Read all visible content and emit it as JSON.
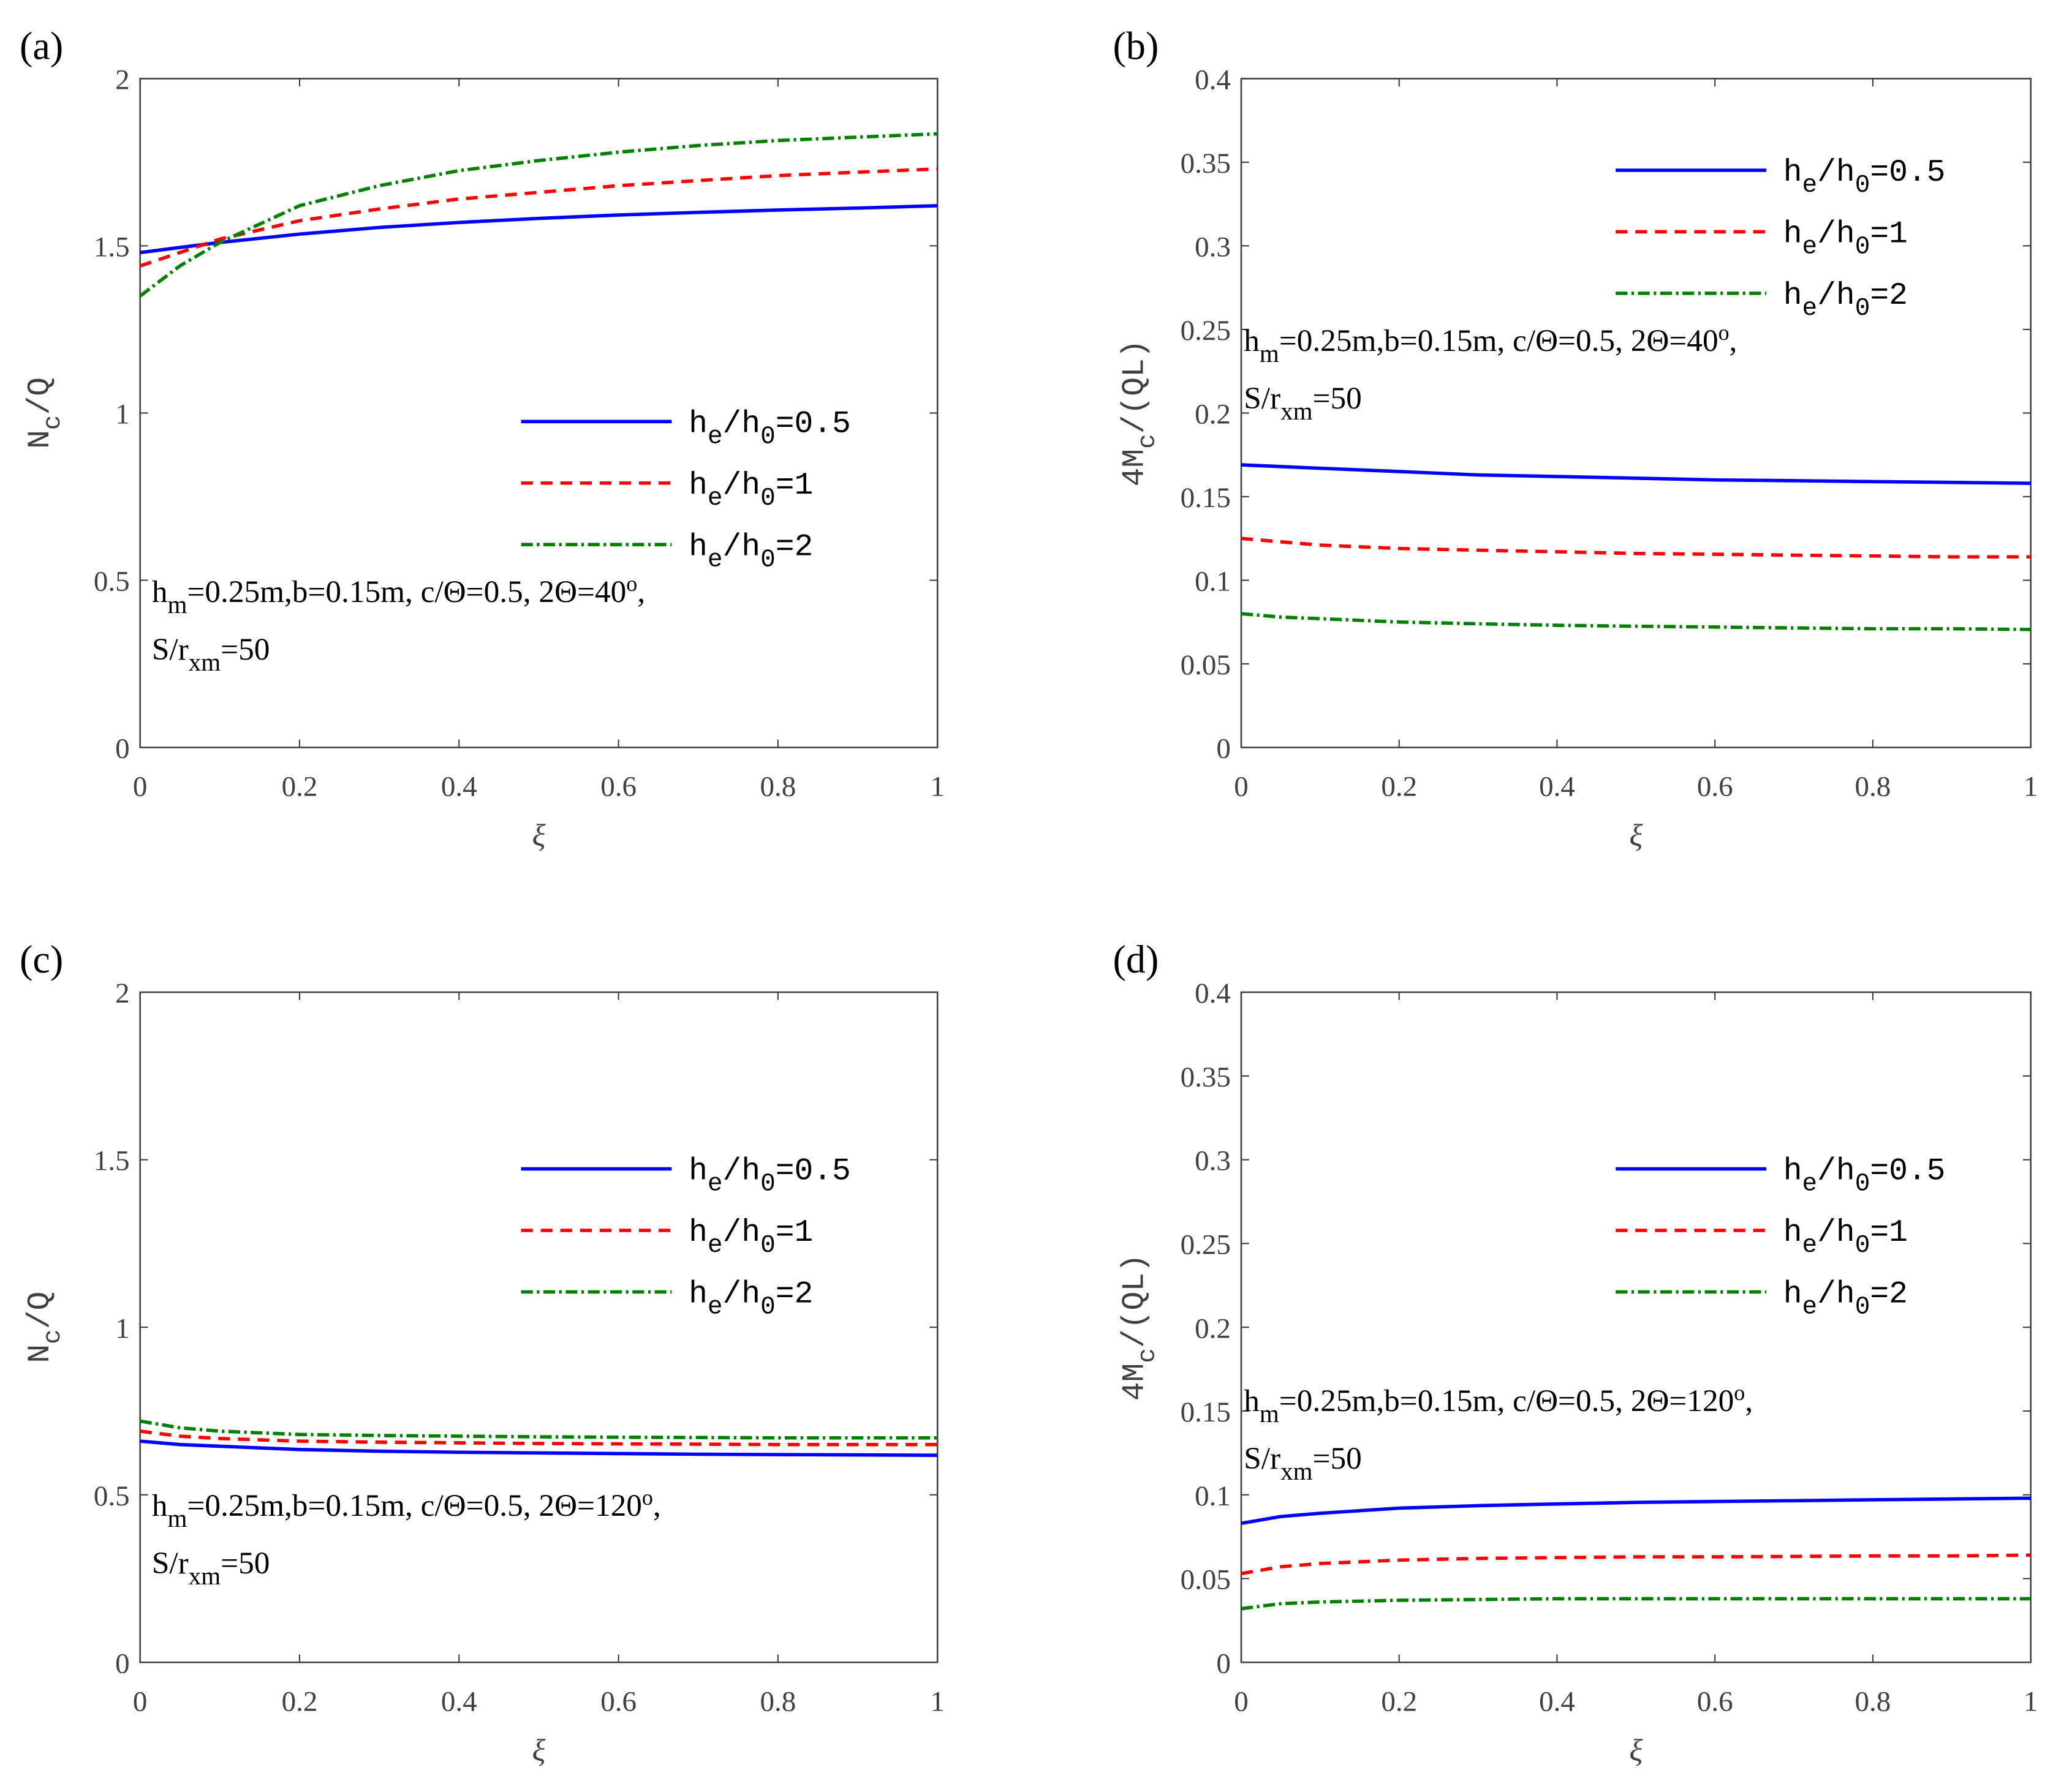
{
  "colors": {
    "blue": "#0000ff",
    "red": "#ff0000",
    "green": "#008000",
    "axis": "#404040"
  },
  "chart_data": [
    {
      "type": "line",
      "panel_label": "(a)",
      "xlabel": "ξ",
      "ylabel": [
        [
          "N",
          ""
        ],
        [
          "c",
          "sub"
        ],
        [
          "/Q",
          ""
        ]
      ],
      "xlim": [
        0,
        1
      ],
      "ylim": [
        0,
        2
      ],
      "xticks": [
        "0",
        "0.2",
        "0.4",
        "0.6",
        "0.8",
        "1"
      ],
      "xtick_values": [
        0,
        0.2,
        0.4,
        0.6,
        0.8,
        1
      ],
      "yticks": [
        "0",
        "0.5",
        "1",
        "1.5",
        "2"
      ],
      "ytick_values": [
        0,
        0.5,
        1,
        1.5,
        2
      ],
      "legend_placement": "center-right",
      "annotation": [
        [
          [
            "h",
            ""
          ],
          [
            "m",
            "sub"
          ],
          [
            "=0.25m,b=0.15m, c/Θ=0.5, 2Θ=40",
            ""
          ],
          [
            "o",
            "sup"
          ],
          [
            ",",
            ""
          ]
        ],
        [
          [
            "S/r",
            ""
          ],
          [
            "xm",
            "sub"
          ],
          [
            "=50",
            ""
          ]
        ]
      ],
      "annotation_placement": "lower-left",
      "x": [
        0,
        0.05,
        0.1,
        0.2,
        0.3,
        0.4,
        0.5,
        0.6,
        0.7,
        0.8,
        0.9,
        1
      ],
      "series": [
        {
          "name": [
            [
              "h",
              ""
            ],
            [
              "e",
              "sub"
            ],
            [
              "/h",
              ""
            ],
            [
              "0",
              "sub"
            ],
            [
              "=0.5",
              ""
            ]
          ],
          "color": "#0000ff",
          "style": "solid",
          "values": [
            1.48,
            1.495,
            1.51,
            1.535,
            1.555,
            1.57,
            1.582,
            1.592,
            1.6,
            1.607,
            1.613,
            1.62
          ]
        },
        {
          "name": [
            [
              "h",
              ""
            ],
            [
              "e",
              "sub"
            ],
            [
              "/h",
              ""
            ],
            [
              "0",
              "sub"
            ],
            [
              "=1",
              ""
            ]
          ],
          "color": "#ff0000",
          "style": "dashed",
          "values": [
            1.44,
            1.48,
            1.52,
            1.575,
            1.61,
            1.64,
            1.66,
            1.68,
            1.695,
            1.71,
            1.72,
            1.73
          ]
        },
        {
          "name": [
            [
              "h",
              ""
            ],
            [
              "e",
              "sub"
            ],
            [
              "/h",
              ""
            ],
            [
              "0",
              "sub"
            ],
            [
              "=2",
              ""
            ]
          ],
          "color": "#008000",
          "style": "dashdot",
          "values": [
            1.35,
            1.44,
            1.51,
            1.62,
            1.68,
            1.725,
            1.755,
            1.78,
            1.8,
            1.815,
            1.825,
            1.835
          ]
        }
      ]
    },
    {
      "type": "line",
      "panel_label": "(b)",
      "xlabel": "ξ",
      "ylabel": [
        [
          "4M",
          ""
        ],
        [
          "c",
          "sub"
        ],
        [
          "/(QL)",
          ""
        ]
      ],
      "xlim": [
        0,
        1
      ],
      "ylim": [
        0,
        0.4
      ],
      "xticks": [
        "0",
        "0.2",
        "0.4",
        "0.6",
        "0.8",
        "1"
      ],
      "xtick_values": [
        0,
        0.2,
        0.4,
        0.6,
        0.8,
        1
      ],
      "yticks": [
        "0",
        "0.05",
        "0.1",
        "0.15",
        "0.2",
        "0.25",
        "0.3",
        "0.35",
        "0.4"
      ],
      "ytick_values": [
        0,
        0.05,
        0.1,
        0.15,
        0.2,
        0.25,
        0.3,
        0.35,
        0.4
      ],
      "legend_placement": "top-right",
      "annotation": [
        [
          [
            "h",
            ""
          ],
          [
            "m",
            "sub"
          ],
          [
            "=0.25m,b=0.15m, c/Θ=0.5, 2Θ=40",
            ""
          ],
          [
            "o",
            "sup"
          ],
          [
            ",",
            ""
          ]
        ],
        [
          [
            "S/r",
            ""
          ],
          [
            "xm",
            "sub"
          ],
          [
            "=50",
            ""
          ]
        ]
      ],
      "annotation_placement": "center-left",
      "x": [
        0,
        0.05,
        0.1,
        0.2,
        0.3,
        0.4,
        0.5,
        0.6,
        0.7,
        0.8,
        0.9,
        1
      ],
      "series": [
        {
          "name": [
            [
              "h",
              ""
            ],
            [
              "e",
              "sub"
            ],
            [
              "/h",
              ""
            ],
            [
              "0",
              "sub"
            ],
            [
              "=0.5",
              ""
            ]
          ],
          "color": "#0000ff",
          "style": "solid",
          "values": [
            0.169,
            0.168,
            0.167,
            0.165,
            0.163,
            0.162,
            0.161,
            0.16,
            0.1595,
            0.159,
            0.1585,
            0.158
          ]
        },
        {
          "name": [
            [
              "h",
              ""
            ],
            [
              "e",
              "sub"
            ],
            [
              "/h",
              ""
            ],
            [
              "0",
              "sub"
            ],
            [
              "=1",
              ""
            ]
          ],
          "color": "#ff0000",
          "style": "dashed",
          "values": [
            0.125,
            0.123,
            0.121,
            0.119,
            0.118,
            0.117,
            0.116,
            0.1155,
            0.115,
            0.1145,
            0.114,
            0.114
          ]
        },
        {
          "name": [
            [
              "h",
              ""
            ],
            [
              "e",
              "sub"
            ],
            [
              "/h",
              ""
            ],
            [
              "0",
              "sub"
            ],
            [
              "=2",
              ""
            ]
          ],
          "color": "#008000",
          "style": "dashdot",
          "values": [
            0.08,
            0.078,
            0.077,
            0.075,
            0.074,
            0.073,
            0.0725,
            0.072,
            0.0715,
            0.071,
            0.071,
            0.0705
          ]
        }
      ]
    },
    {
      "type": "line",
      "panel_label": "(c)",
      "xlabel": "ξ",
      "ylabel": [
        [
          "N",
          ""
        ],
        [
          "c",
          "sub"
        ],
        [
          "/Q",
          ""
        ]
      ],
      "xlim": [
        0,
        1
      ],
      "ylim": [
        0,
        2
      ],
      "xticks": [
        "0",
        "0.2",
        "0.4",
        "0.6",
        "0.8",
        "1"
      ],
      "xtick_values": [
        0,
        0.2,
        0.4,
        0.6,
        0.8,
        1
      ],
      "yticks": [
        "0",
        "0.5",
        "1",
        "1.5",
        "2"
      ],
      "ytick_values": [
        0,
        0.5,
        1,
        1.5,
        2
      ],
      "legend_placement": "top-right",
      "annotation": [
        [
          [
            "h",
            ""
          ],
          [
            "m",
            "sub"
          ],
          [
            "=0.25m,b=0.15m, c/Θ=0.5, 2Θ=120",
            ""
          ],
          [
            "o",
            "sup"
          ],
          [
            ",",
            ""
          ]
        ],
        [
          [
            "S/r",
            ""
          ],
          [
            "xm",
            "sub"
          ],
          [
            "=50",
            ""
          ]
        ]
      ],
      "annotation_placement": "lower-left",
      "x": [
        0,
        0.05,
        0.1,
        0.2,
        0.3,
        0.4,
        0.5,
        0.6,
        0.7,
        0.8,
        0.9,
        1
      ],
      "series": [
        {
          "name": [
            [
              "h",
              ""
            ],
            [
              "e",
              "sub"
            ],
            [
              "/h",
              ""
            ],
            [
              "0",
              "sub"
            ],
            [
              "=0.5",
              ""
            ]
          ],
          "color": "#0000ff",
          "style": "solid",
          "values": [
            0.66,
            0.65,
            0.645,
            0.635,
            0.63,
            0.627,
            0.625,
            0.623,
            0.621,
            0.62,
            0.619,
            0.618
          ]
        },
        {
          "name": [
            [
              "h",
              ""
            ],
            [
              "e",
              "sub"
            ],
            [
              "/h",
              ""
            ],
            [
              "0",
              "sub"
            ],
            [
              "=1",
              ""
            ]
          ],
          "color": "#ff0000",
          "style": "dashed",
          "values": [
            0.69,
            0.675,
            0.668,
            0.66,
            0.657,
            0.655,
            0.653,
            0.652,
            0.651,
            0.65,
            0.65,
            0.65
          ]
        },
        {
          "name": [
            [
              "h",
              ""
            ],
            [
              "e",
              "sub"
            ],
            [
              "/h",
              ""
            ],
            [
              "0",
              "sub"
            ],
            [
              "=2",
              ""
            ]
          ],
          "color": "#008000",
          "style": "dashdot",
          "values": [
            0.72,
            0.7,
            0.69,
            0.68,
            0.677,
            0.675,
            0.673,
            0.672,
            0.671,
            0.67,
            0.67,
            0.67
          ]
        }
      ]
    },
    {
      "type": "line",
      "panel_label": "(d)",
      "xlabel": "ξ",
      "ylabel": [
        [
          "4M",
          ""
        ],
        [
          "c",
          "sub"
        ],
        [
          "/(QL)",
          ""
        ]
      ],
      "xlim": [
        0,
        1
      ],
      "ylim": [
        0,
        0.4
      ],
      "xticks": [
        "0",
        "0.2",
        "0.4",
        "0.6",
        "0.8",
        "1"
      ],
      "xtick_values": [
        0,
        0.2,
        0.4,
        0.6,
        0.8,
        1
      ],
      "yticks": [
        "0",
        "0.05",
        "0.1",
        "0.15",
        "0.2",
        "0.25",
        "0.3",
        "0.35",
        "0.4"
      ],
      "ytick_values": [
        0,
        0.05,
        0.1,
        0.15,
        0.2,
        0.25,
        0.3,
        0.35,
        0.4
      ],
      "legend_placement": "top-right",
      "annotation": [
        [
          [
            "h",
            ""
          ],
          [
            "m",
            "sub"
          ],
          [
            "=0.25m,b=0.15m, c/Θ=0.5, 2Θ=120",
            ""
          ],
          [
            "o",
            "sup"
          ],
          [
            ",",
            ""
          ]
        ],
        [
          [
            "S/r",
            ""
          ],
          [
            "xm",
            "sub"
          ],
          [
            "=50",
            ""
          ]
        ]
      ],
      "annotation_placement": "center-left",
      "x": [
        0,
        0.05,
        0.1,
        0.2,
        0.3,
        0.4,
        0.5,
        0.6,
        0.7,
        0.8,
        0.9,
        1
      ],
      "series": [
        {
          "name": [
            [
              "h",
              ""
            ],
            [
              "e",
              "sub"
            ],
            [
              "/h",
              ""
            ],
            [
              "0",
              "sub"
            ],
            [
              "=0.5",
              ""
            ]
          ],
          "color": "#0000ff",
          "style": "solid",
          "values": [
            0.083,
            0.087,
            0.089,
            0.092,
            0.0935,
            0.0945,
            0.0955,
            0.096,
            0.0965,
            0.097,
            0.0975,
            0.098
          ]
        },
        {
          "name": [
            [
              "h",
              ""
            ],
            [
              "e",
              "sub"
            ],
            [
              "/h",
              ""
            ],
            [
              "0",
              "sub"
            ],
            [
              "=1",
              ""
            ]
          ],
          "color": "#ff0000",
          "style": "dashed",
          "values": [
            0.053,
            0.057,
            0.059,
            0.061,
            0.062,
            0.0625,
            0.063,
            0.063,
            0.0632,
            0.0635,
            0.0635,
            0.064
          ]
        },
        {
          "name": [
            [
              "h",
              ""
            ],
            [
              "e",
              "sub"
            ],
            [
              "/h",
              ""
            ],
            [
              "0",
              "sub"
            ],
            [
              "=2",
              ""
            ]
          ],
          "color": "#008000",
          "style": "dashdot",
          "values": [
            0.032,
            0.035,
            0.036,
            0.037,
            0.0375,
            0.038,
            0.038,
            0.038,
            0.038,
            0.038,
            0.038,
            0.038
          ]
        }
      ]
    }
  ]
}
